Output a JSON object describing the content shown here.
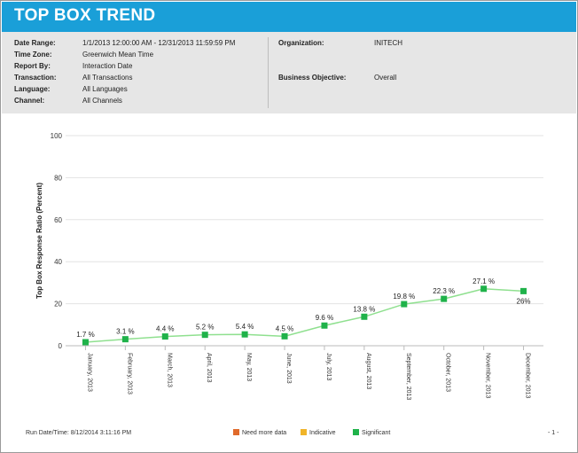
{
  "header": {
    "title": "TOP BOX TREND"
  },
  "filters": {
    "left": [
      {
        "label": "Date Range:",
        "value": "1/1/2013 12:00:00 AM - 12/31/2013 11:59:59 PM"
      },
      {
        "label": "Time Zone:",
        "value": "Greenwich Mean Time"
      },
      {
        "label": "Report By:",
        "value": "Interaction Date"
      },
      {
        "label": "Transaction:",
        "value": "All Transactions"
      },
      {
        "label": "Language:",
        "value": "All Languages"
      },
      {
        "label": "Channel:",
        "value": "All Channels"
      }
    ],
    "right": [
      {
        "label": "Organization:",
        "value": "INITECH"
      },
      {
        "label": "Business Objective:",
        "value": "Overall"
      }
    ]
  },
  "chart_data": {
    "type": "line",
    "ylabel": "Top Box Response Ratio (Percent)",
    "ylim": [
      0,
      100
    ],
    "yticks": [
      0,
      20,
      40,
      60,
      80,
      100
    ],
    "grid": true,
    "categories": [
      "January, 2013",
      "February, 2013",
      "March, 2013",
      "April, 2013",
      "May, 2013",
      "June, 2013",
      "July, 2013",
      "August, 2013",
      "September, 2013",
      "October, 2013",
      "November, 2013",
      "December, 2013"
    ],
    "series": [
      {
        "values": [
          1.7,
          3.1,
          4.4,
          5.2,
          5.4,
          4.5,
          9.6,
          13.8,
          19.8,
          22.3,
          27.1,
          26
        ],
        "labels": [
          "1.7 %",
          "3.1 %",
          "4.4 %",
          "5.2 %",
          "5.4 %",
          "4.5 %",
          "9.6 %",
          "13.8 %",
          "19.8 %",
          "22.3 %",
          "27.1 %",
          "26%"
        ],
        "line_color": "#8fe08f",
        "marker_color": "#1fb24a"
      }
    ],
    "legend": [
      {
        "label": "Need more data",
        "color": "#e06a2b"
      },
      {
        "label": "Indicative",
        "color": "#f0b429"
      },
      {
        "label": "Significant",
        "color": "#1fb24a"
      }
    ],
    "legend_position": "bottom"
  },
  "footer": {
    "run_datetime": "Run Date/Time: 8/12/2014 3:11:16 PM",
    "page": "- 1 -"
  }
}
